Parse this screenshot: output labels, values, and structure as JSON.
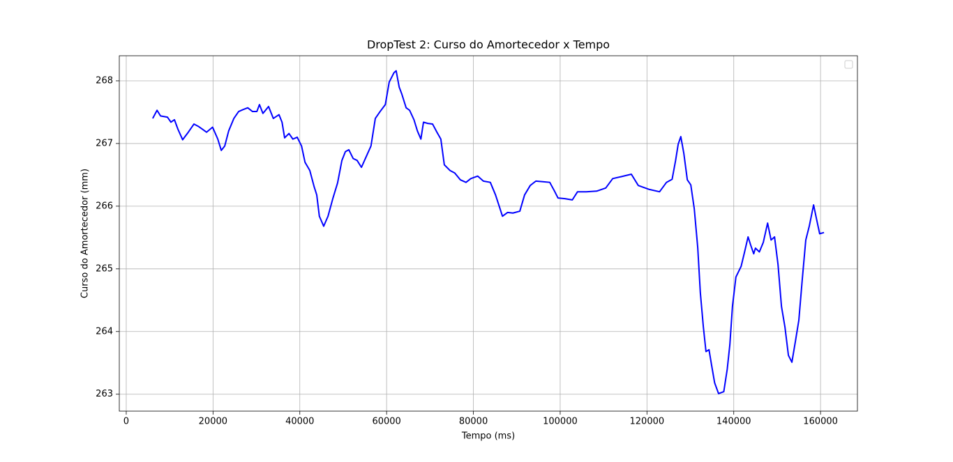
{
  "chart_data": {
    "type": "line",
    "title": "DropTest 2: Curso do Amortecedor x Tempo",
    "x_label": "Tempo (ms)",
    "y_label": "Curso do Amortecedor (mm)",
    "color": "#0000ff",
    "grid": true,
    "legend": "upper right",
    "xlim": [
      -1600,
      168500
    ],
    "ylim": [
      262.73,
      268.4
    ],
    "xticks": [
      0,
      20000,
      40000,
      60000,
      80000,
      100000,
      120000,
      140000,
      160000
    ],
    "yticks": [
      263,
      264,
      265,
      266,
      267,
      268
    ],
    "x": [
      6100,
      7100,
      7900,
      9500,
      10300,
      11100,
      11900,
      13000,
      14300,
      15600,
      16700,
      17500,
      18500,
      19900,
      21100,
      21900,
      22700,
      23600,
      24800,
      25900,
      26900,
      28000,
      29100,
      30100,
      30700,
      31500,
      32800,
      33900,
      35200,
      35900,
      36500,
      37500,
      38400,
      39400,
      40400,
      41200,
      42300,
      43300,
      43900,
      44500,
      45500,
      46500,
      47600,
      48700,
      49700,
      50500,
      51300,
      52300,
      53200,
      54200,
      55300,
      56400,
      57400,
      58500,
      59700,
      60600,
      61700,
      62200,
      62900,
      63500,
      64500,
      65300,
      66300,
      67100,
      67900,
      68500,
      69500,
      70600,
      71600,
      72500,
      73300,
      74600,
      75700,
      77000,
      78300,
      79400,
      81000,
      82300,
      83900,
      85100,
      86000,
      86700,
      87900,
      89100,
      90700,
      91800,
      93100,
      94400,
      96000,
      97600,
      98700,
      99500,
      101100,
      102800,
      104000,
      106000,
      108400,
      110500,
      112100,
      114000,
      116400,
      118000,
      120400,
      122900,
      124500,
      125800,
      126600,
      127200,
      127800,
      128500,
      129300,
      130100,
      130900,
      131700,
      132300,
      133000,
      133600,
      134300,
      134900,
      135600,
      136500,
      137700,
      138500,
      139100,
      139700,
      140500,
      141700,
      142500,
      143300,
      143900,
      144600,
      145000,
      145900,
      146800,
      147800,
      148600,
      149400,
      150200,
      151000,
      151800,
      152600,
      153400,
      154200,
      155000,
      155800,
      156600,
      157400,
      158400,
      159000,
      159800,
      160800
    ],
    "values": [
      267.4,
      267.53,
      267.44,
      267.42,
      267.34,
      267.38,
      267.23,
      267.06,
      267.18,
      267.31,
      267.27,
      267.23,
      267.18,
      267.26,
      267.07,
      266.89,
      266.96,
      267.2,
      267.4,
      267.51,
      267.54,
      267.57,
      267.51,
      267.51,
      267.62,
      267.48,
      267.59,
      267.4,
      267.46,
      267.34,
      267.09,
      267.16,
      267.07,
      267.1,
      266.96,
      266.7,
      266.57,
      266.31,
      266.18,
      265.84,
      265.68,
      265.84,
      266.12,
      266.37,
      266.73,
      266.87,
      266.9,
      266.76,
      266.73,
      266.62,
      266.79,
      266.96,
      267.4,
      267.51,
      267.62,
      267.98,
      268.13,
      268.16,
      267.9,
      267.79,
      267.57,
      267.53,
      267.38,
      267.2,
      267.07,
      267.34,
      267.32,
      267.31,
      267.18,
      267.07,
      266.66,
      266.57,
      266.53,
      266.42,
      266.38,
      266.44,
      266.48,
      266.4,
      266.38,
      266.18,
      265.99,
      265.84,
      265.9,
      265.89,
      265.92,
      266.18,
      266.33,
      266.4,
      266.39,
      266.38,
      266.24,
      266.13,
      266.12,
      266.1,
      266.23,
      266.23,
      266.24,
      266.29,
      266.44,
      266.47,
      266.51,
      266.33,
      266.27,
      266.23,
      266.38,
      266.43,
      266.73,
      266.99,
      267.11,
      266.84,
      266.42,
      266.34,
      265.96,
      265.34,
      264.62,
      264.07,
      263.68,
      263.71,
      263.46,
      263.18,
      263.01,
      263.04,
      263.4,
      263.79,
      264.4,
      264.87,
      265.04,
      265.27,
      265.51,
      265.38,
      265.24,
      265.33,
      265.27,
      265.42,
      265.73,
      265.46,
      265.51,
      265.07,
      264.4,
      264.07,
      263.62,
      263.51,
      263.84,
      264.18,
      264.84,
      265.46,
      265.68,
      266.02,
      265.82,
      265.56,
      265.58
    ]
  }
}
